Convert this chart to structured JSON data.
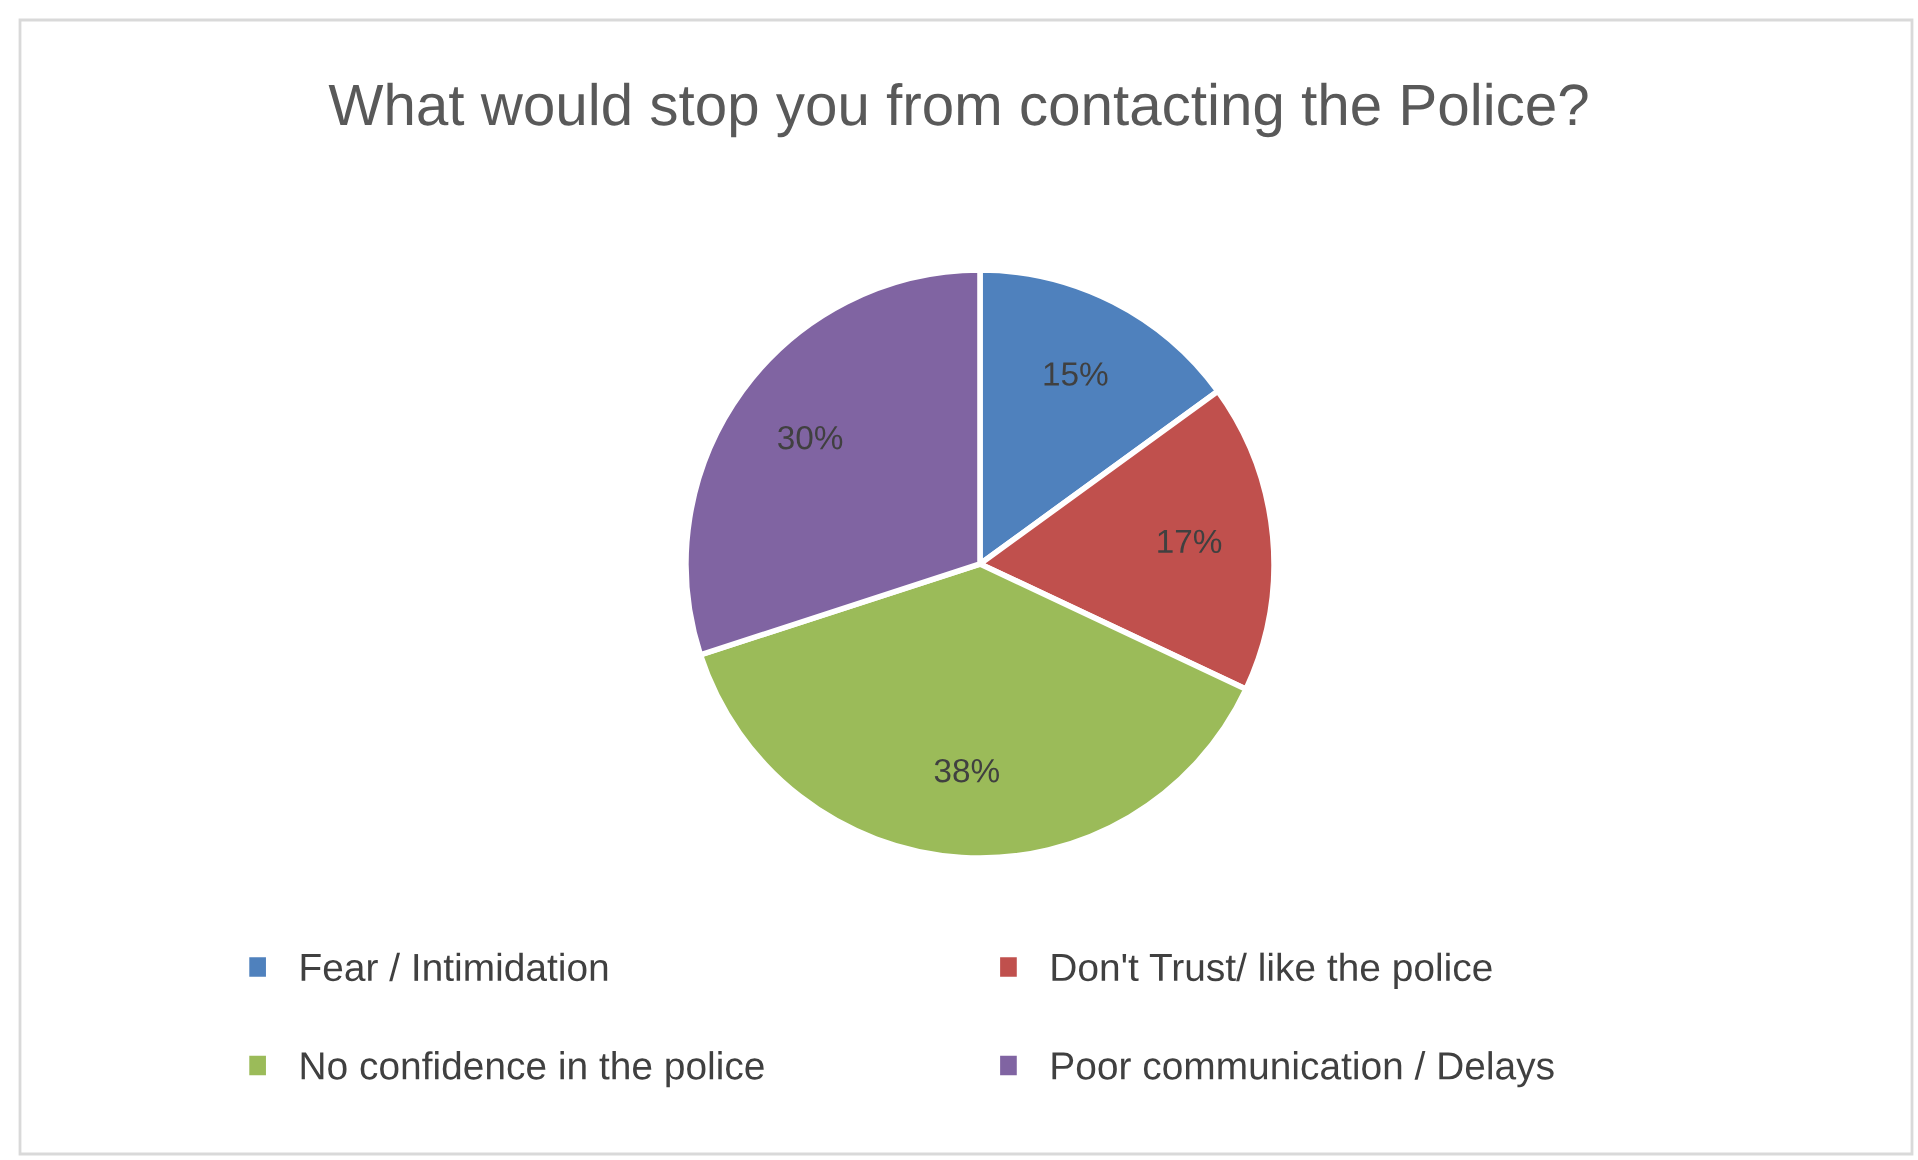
{
  "chart_data": {
    "type": "pie",
    "title": "What would stop you from contacting the Police?",
    "categories": [
      "Fear / Intimidation",
      "Don't Trust/ like the police",
      "No confidence in the police",
      "Poor communication / Delays"
    ],
    "values": [
      15,
      17,
      38,
      30
    ],
    "colors": [
      "#4f81bd",
      "#c0504d",
      "#9bbb59",
      "#8064a2"
    ],
    "value_labels": [
      "15%",
      "17%",
      "38%",
      "30%"
    ],
    "legend": "bottom"
  }
}
